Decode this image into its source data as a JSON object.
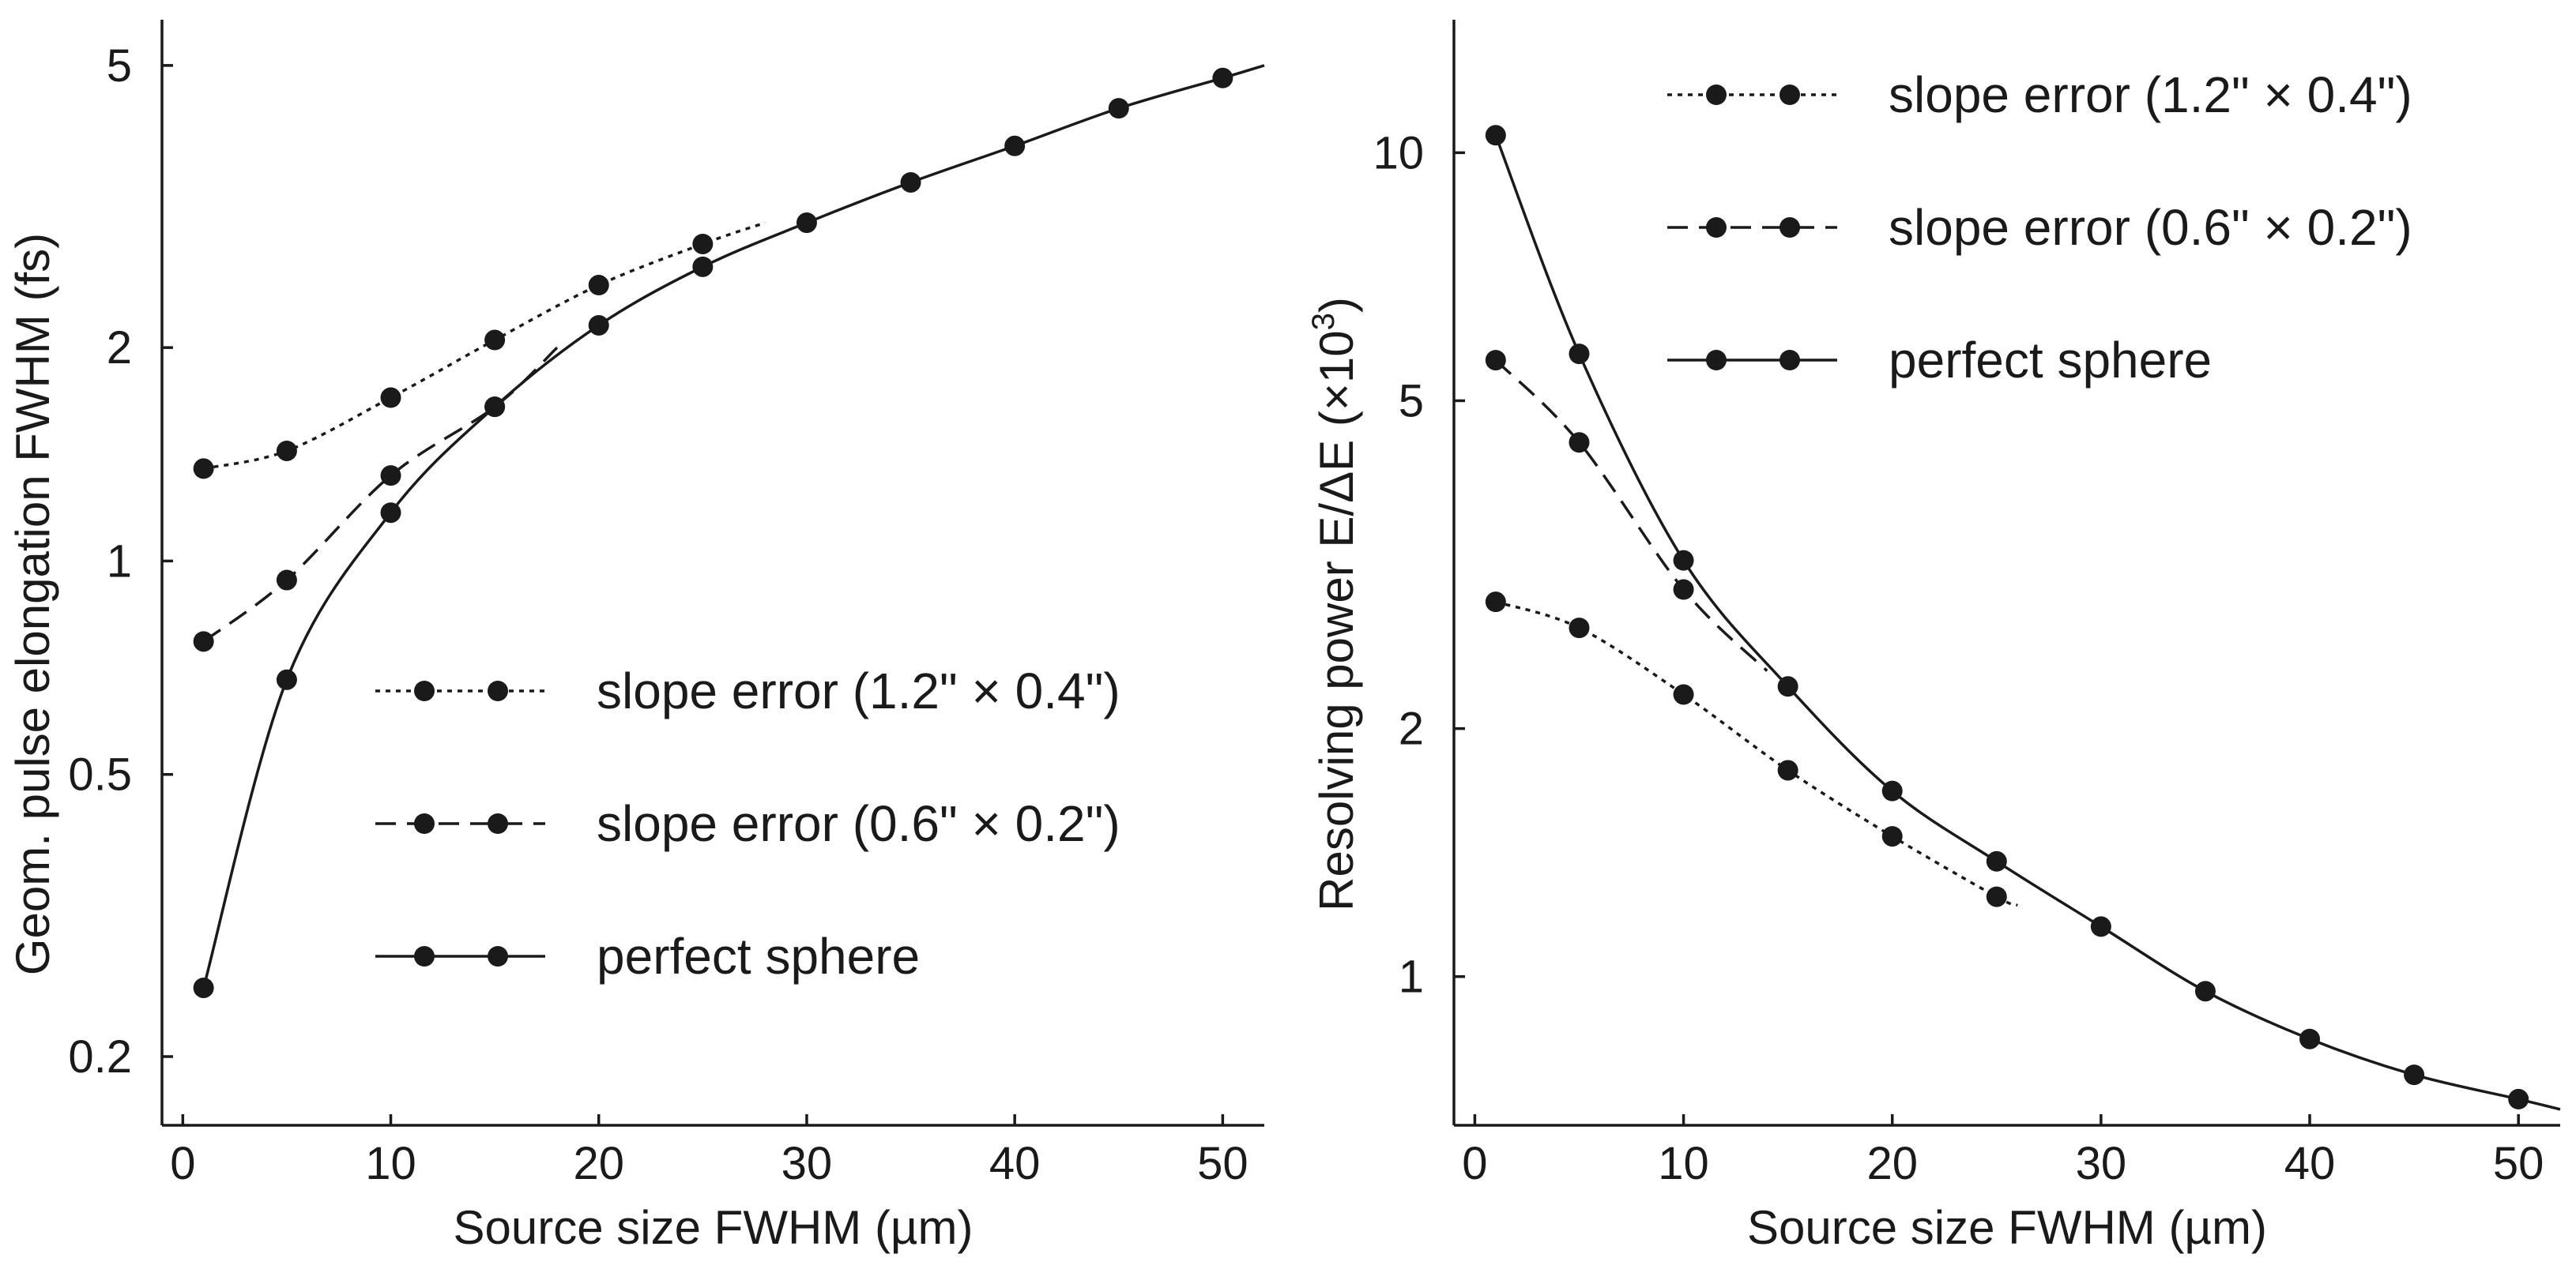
{
  "chart_data": [
    {
      "id": "left",
      "type": "line",
      "y_scale": "log",
      "xlabel": "Source size FWHM (µm)",
      "ylabel": "Geom. pulse elongation FWHM (fs)",
      "xlim": [
        -1,
        52
      ],
      "ylim": [
        0.16,
        5.8
      ],
      "xticks": [
        0,
        10,
        20,
        30,
        40,
        50
      ],
      "xtick_labels": [
        "0",
        "10",
        "20",
        "30",
        "40",
        "50"
      ],
      "yticks": [
        0.2,
        0.5,
        1,
        2,
        5
      ],
      "ytick_labels": [
        "0.2",
        "0.5",
        "1",
        "2",
        "5"
      ],
      "legend_position": "lower-right",
      "series": [
        {
          "name": "slope error (1.2\" × 0.4\")",
          "style": "dotted",
          "x": [
            1,
            5,
            10,
            15,
            20,
            25
          ],
          "y": [
            1.35,
            1.43,
            1.7,
            2.05,
            2.45,
            2.8
          ],
          "curve_end": [
            28,
            3.0
          ]
        },
        {
          "name": "slope error (0.6\" × 0.2\")",
          "style": "dashed",
          "x": [
            1,
            5,
            10,
            15
          ],
          "y": [
            0.77,
            0.94,
            1.32,
            1.65
          ],
          "curve_end": [
            18,
            2.0
          ]
        },
        {
          "name": "perfect sphere",
          "style": "solid",
          "x": [
            1,
            5,
            10,
            15,
            20,
            25,
            30,
            35,
            40,
            45,
            50
          ],
          "y": [
            0.25,
            0.68,
            1.17,
            1.65,
            2.15,
            2.6,
            3.0,
            3.42,
            3.85,
            4.35,
            4.8
          ],
          "curve_end": [
            52,
            5.0
          ]
        }
      ]
    },
    {
      "id": "right",
      "type": "line",
      "y_scale": "log",
      "xlabel": "Source size FWHM (µm)",
      "ylabel": "Resolving power E/ΔE (×10",
      "ylabel_sup": "3",
      "ylabel_close": ")",
      "xlim": [
        -1,
        52
      ],
      "ylim": [
        0.66,
        14.5
      ],
      "xticks": [
        0,
        10,
        20,
        30,
        40,
        50
      ],
      "xtick_labels": [
        "0",
        "10",
        "20",
        "30",
        "40",
        "50"
      ],
      "yticks": [
        1,
        2,
        5,
        10
      ],
      "ytick_labels": [
        "1",
        "2",
        "5",
        "10"
      ],
      "legend_position": "top-right",
      "series": [
        {
          "name": "slope error (1.2\" × 0.4\")",
          "style": "dotted",
          "x": [
            1,
            5,
            10,
            15,
            20,
            25
          ],
          "y": [
            2.85,
            2.65,
            2.2,
            1.78,
            1.48,
            1.25
          ],
          "curve_end": [
            26,
            1.22
          ]
        },
        {
          "name": "slope error (0.6\" × 0.2\")",
          "style": "dashed",
          "x": [
            1,
            5,
            10
          ],
          "y": [
            5.6,
            4.45,
            2.95
          ],
          "curve_end": [
            14,
            2.35
          ]
        },
        {
          "name": "perfect sphere",
          "style": "solid",
          "x": [
            1,
            5,
            10,
            15,
            20,
            25,
            30,
            35,
            40,
            45,
            50
          ],
          "y": [
            10.5,
            5.7,
            3.2,
            2.25,
            1.68,
            1.38,
            1.15,
            0.96,
            0.84,
            0.76,
            0.71
          ],
          "curve_end": [
            52,
            0.69
          ]
        }
      ]
    }
  ]
}
